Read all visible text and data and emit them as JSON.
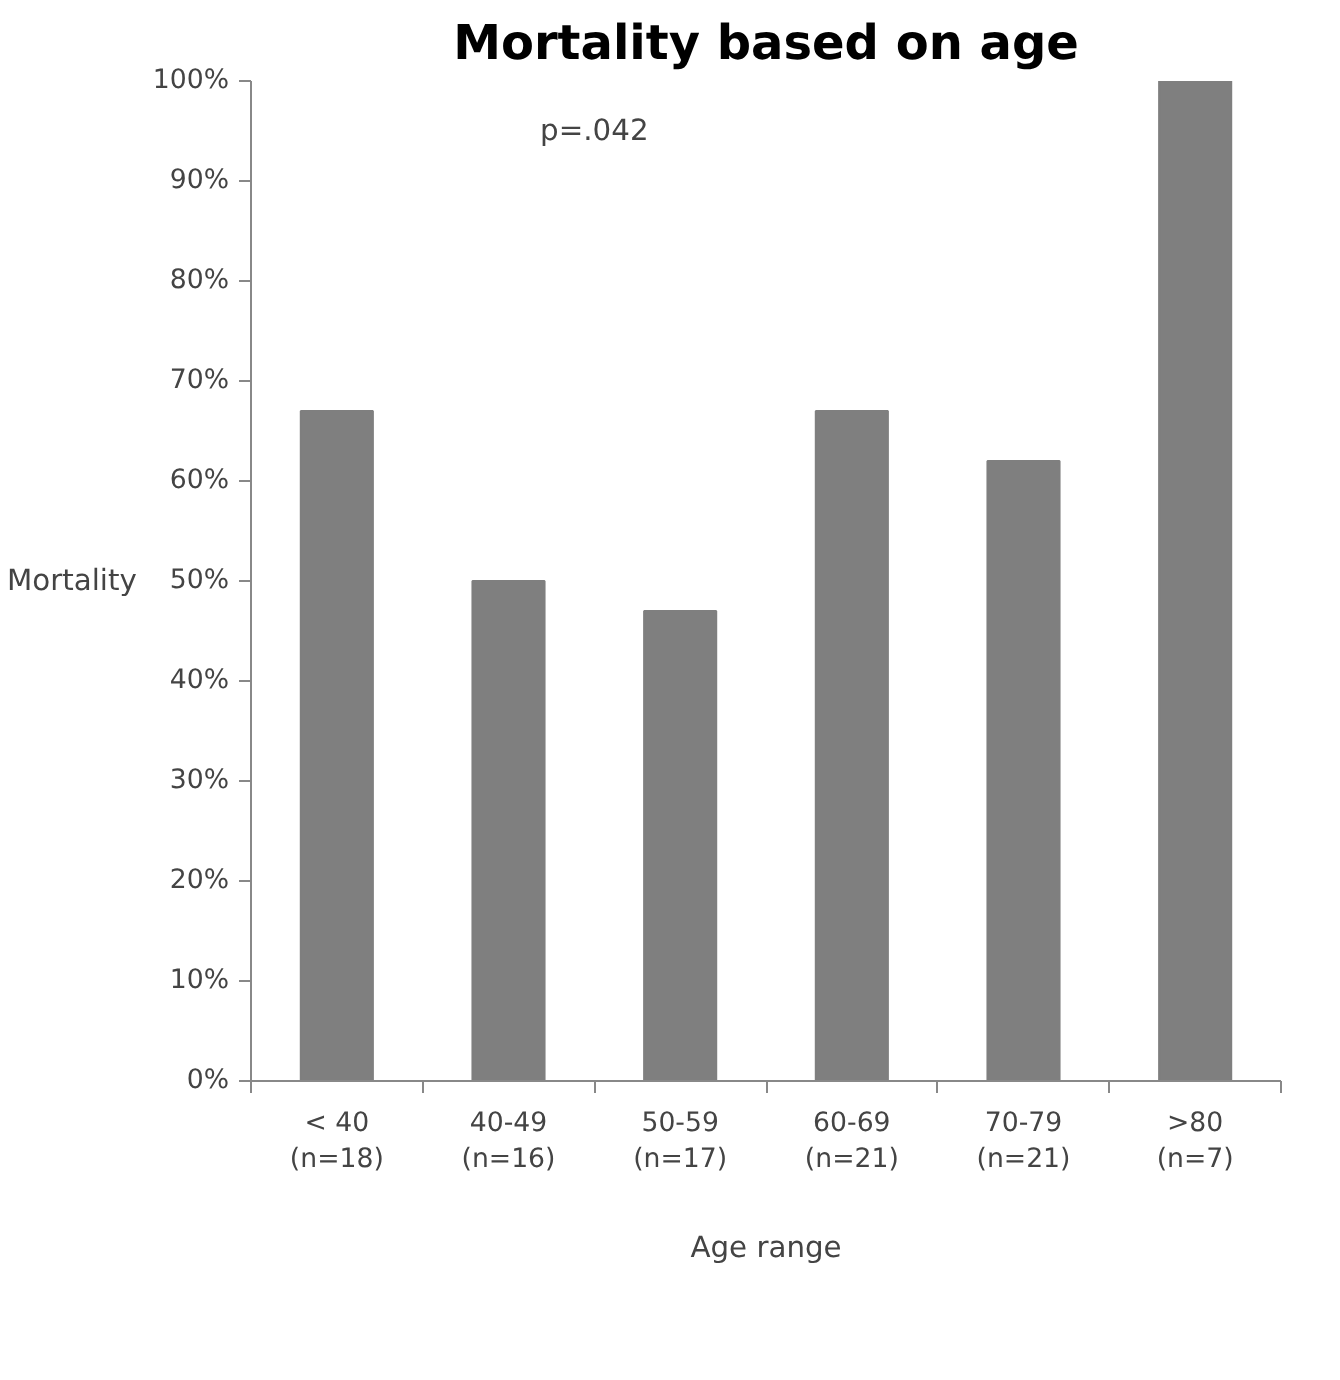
{
  "chart_data": {
    "type": "bar",
    "title": "Mortality based on age",
    "xlabel": "Age range",
    "ylabel": "Mortality",
    "categories": [
      "< 40\n(n=18)",
      "40-49\n(n=16)",
      "50-59\n(n=17)",
      "60-69\n(n=21)",
      "70-79\n(n=21)",
      ">80\n(n=7)"
    ],
    "values": [
      67,
      50,
      47,
      67,
      62,
      100
    ],
    "color": "#7f7f7f",
    "ylim": [
      0,
      100
    ],
    "yticks": [
      {
        "value": 0,
        "label": "0%"
      },
      {
        "value": 10,
        "label": "10%"
      },
      {
        "value": 20,
        "label": "20%"
      },
      {
        "value": 30,
        "label": "30%"
      },
      {
        "value": 40,
        "label": "40%"
      },
      {
        "value": 50,
        "label": "50%"
      },
      {
        "value": 60,
        "label": "60%"
      },
      {
        "value": 70,
        "label": "70%"
      },
      {
        "value": 80,
        "label": "80%"
      },
      {
        "value": 90,
        "label": "90%"
      },
      {
        "value": 100,
        "label": "100%"
      }
    ],
    "annotations": [
      "p=.042"
    ],
    "grid": false
  }
}
